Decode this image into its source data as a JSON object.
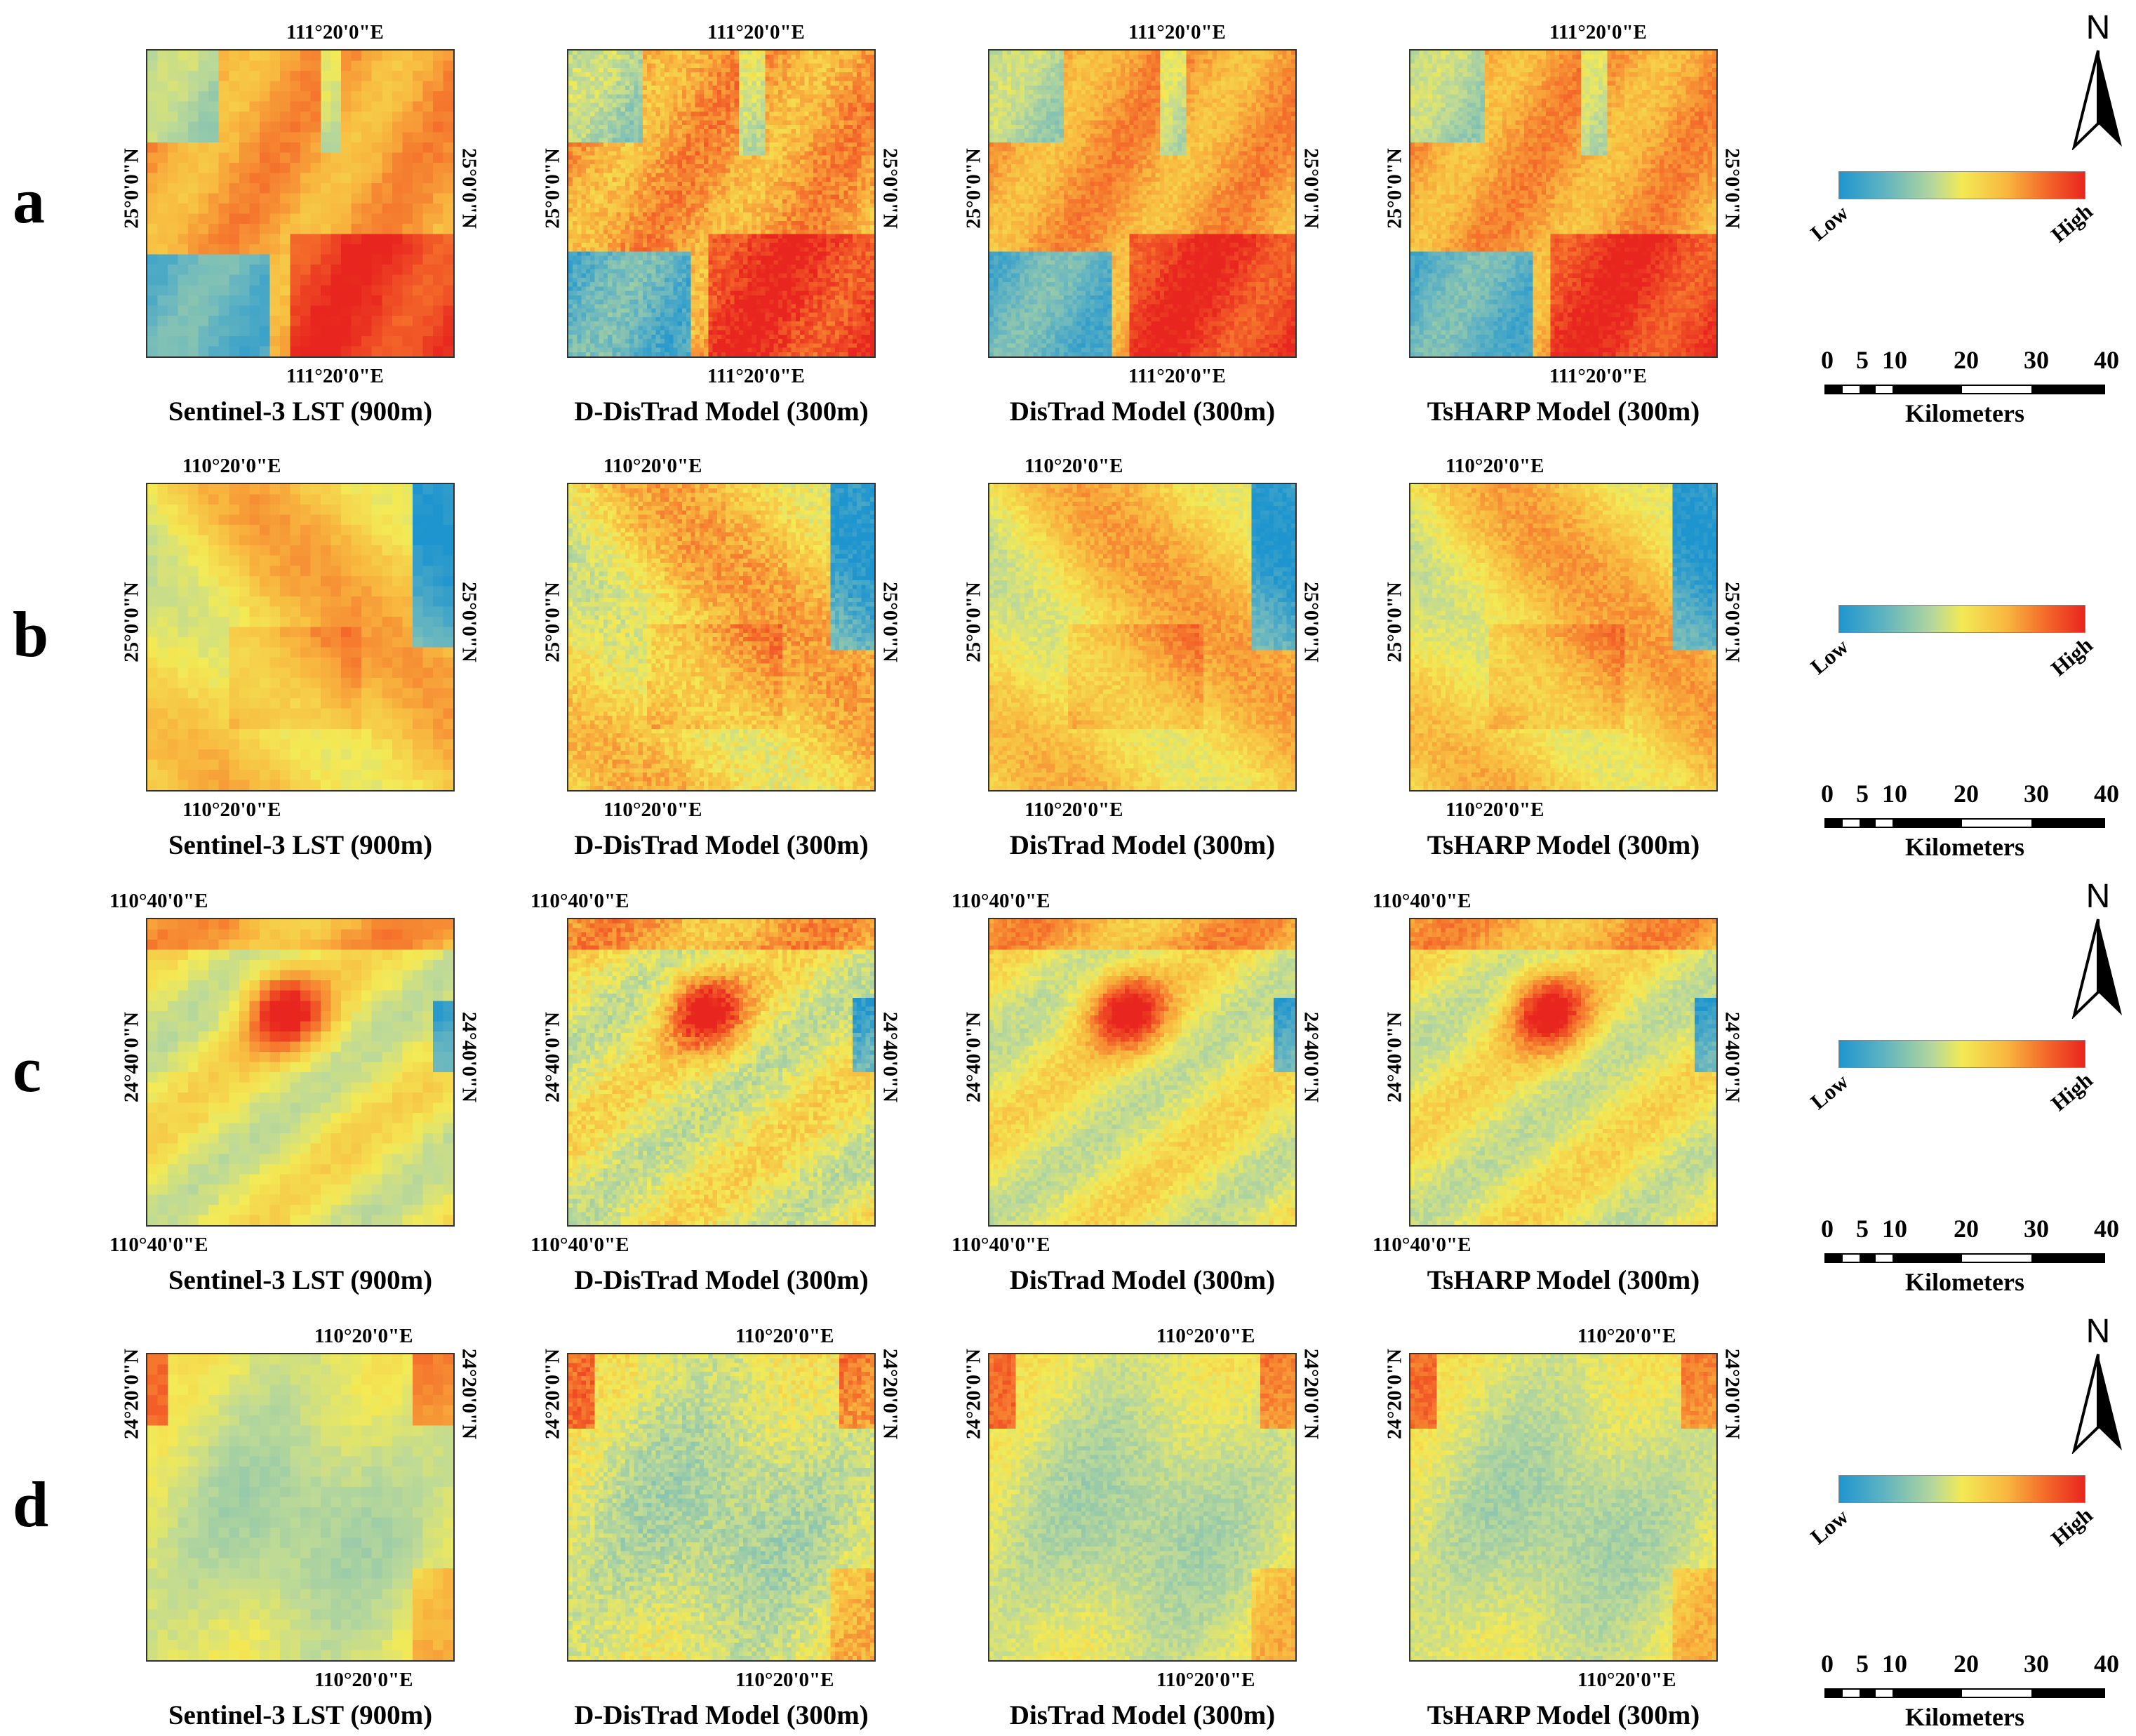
{
  "rows": [
    {
      "label": "a",
      "top_lon": "111°20'0\"E",
      "bottom_lon": "111°20'0\"E",
      "left_lat": "25°0'0\"N",
      "right_lat": "25°0'0\"N",
      "lon_pos": "center",
      "north_arrow": true
    },
    {
      "label": "b",
      "top_lon": "110°20'0\"E",
      "bottom_lon": "110°20'0\"E",
      "left_lat": "25°0'0\"N",
      "right_lat": "25°0'0\"N",
      "lon_pos": "left",
      "north_arrow": false
    },
    {
      "label": "c",
      "top_lon": "110°40'0\"E",
      "bottom_lon": "110°40'0\"E",
      "left_lat": "24°40'0\"N",
      "right_lat": "24°40'0\"N",
      "lon_pos": "edge",
      "north_arrow": true
    },
    {
      "label": "d",
      "top_lon": "110°20'0\"E",
      "bottom_lon": "110°20'0\"E",
      "left_lat": "24°20'0\"N",
      "right_lat": "24°20'0\"N",
      "lon_pos": "right",
      "north_arrow": true
    }
  ],
  "captions": [
    "Sentinel-3 LST (900m)",
    "D-DisTrad Model (300m)",
    "DisTrad Model (300m)",
    "TsHARP Model (300m)"
  ],
  "legend": {
    "low": "Low",
    "high": "High",
    "colors": [
      "#1f95cf",
      "#b4d79c",
      "#f3ea55",
      "#f8b73f",
      "#e8251e"
    ]
  },
  "scale": {
    "ticks": [
      "0",
      "5",
      "10",
      "20",
      "30",
      "40"
    ],
    "unit": "Kilometers"
  },
  "north_label": "N"
}
